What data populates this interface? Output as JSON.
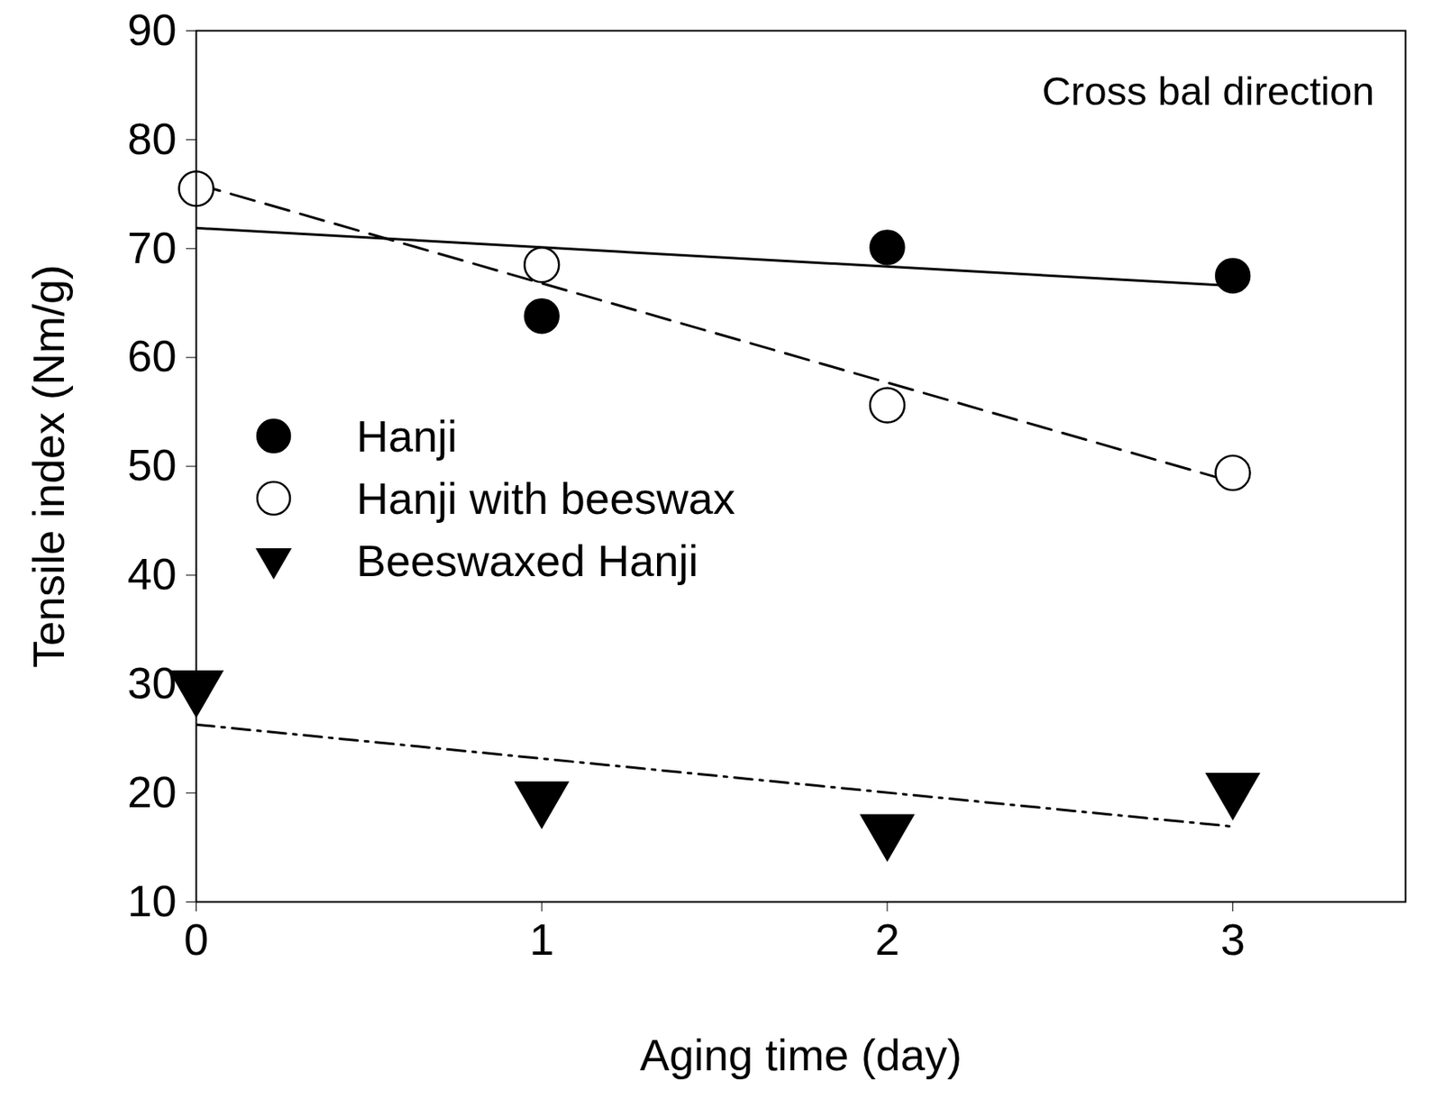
{
  "chart_data": {
    "type": "scatter",
    "x_label": "Aging time (day)",
    "y_label": "Tensile index (Nm/g)",
    "annotation": "Cross bal direction",
    "x": [
      0,
      1,
      2,
      3
    ],
    "series": [
      {
        "name": "Hanji",
        "color": "#000000",
        "marker": "circle",
        "line_style": "solid",
        "values": [
          75.5,
          63.8,
          70.1,
          67.5
        ]
      },
      {
        "name": "Hanji with beeswax",
        "color": "#000000",
        "marker": "open_circle",
        "line_style": "dashed",
        "values": [
          75.5,
          68.5,
          55.6,
          49.4
        ]
      },
      {
        "name": "Beeswaxed Hanji",
        "color": "#000000",
        "marker": "triangle_down",
        "line_style": "dashdot",
        "values": [
          29.8,
          19.6,
          16.6,
          20.4
        ]
      }
    ],
    "xlim": [
      0,
      3.5
    ],
    "xticks": [
      0,
      1,
      2,
      3
    ],
    "ylim": [
      10,
      90
    ],
    "yticks": [
      10,
      20,
      30,
      40,
      50,
      60,
      70,
      80,
      90
    ],
    "legend": "left"
  }
}
